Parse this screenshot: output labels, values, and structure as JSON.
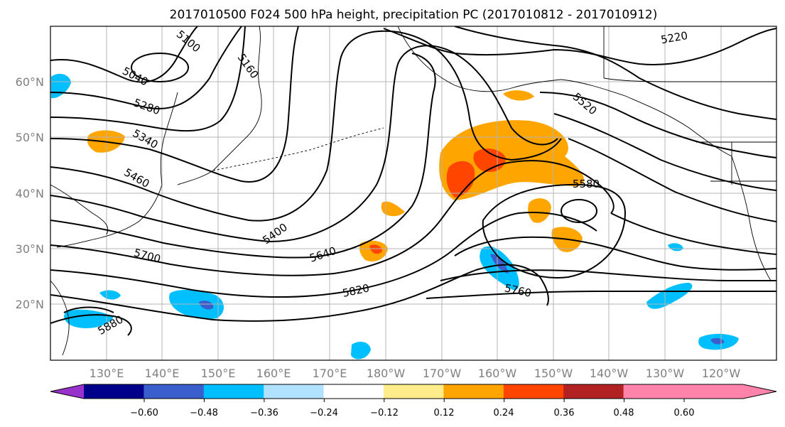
{
  "title": "2017010500 F024 500 hPa height, precipitation PC (2017010812 - 2017010912)",
  "lat_labels": [
    "60°N",
    "50°N",
    "40°N",
    "30°N",
    "20°N"
  ],
  "lon_labels": [
    "130°E",
    "140°E",
    "150°E",
    "160°E",
    "170°E",
    "180°W",
    "170°W",
    "160°W",
    "150°W",
    "140°W",
    "130°W",
    "120°W"
  ],
  "contour_labels": [
    "5040",
    "5100",
    "5160",
    "5220",
    "5280",
    "5340",
    "5400",
    "5460",
    "5520",
    "5580",
    "5640",
    "5700",
    "5760",
    "5820",
    "5880"
  ],
  "colorbar": {
    "tick_labels": [
      "−0.60",
      "−0.48",
      "−0.36",
      "−0.24",
      "−0.12",
      "0.12",
      "0.24",
      "0.36",
      "0.48",
      "0.60"
    ],
    "colors": [
      "#9932cc",
      "#00008b",
      "#3a5fcd",
      "#00bfff",
      "#b0e2ff",
      "#ffffff",
      "#ffec8b",
      "#ffa500",
      "#ff4500",
      "#b22222",
      "#ff83aa"
    ]
  }
}
